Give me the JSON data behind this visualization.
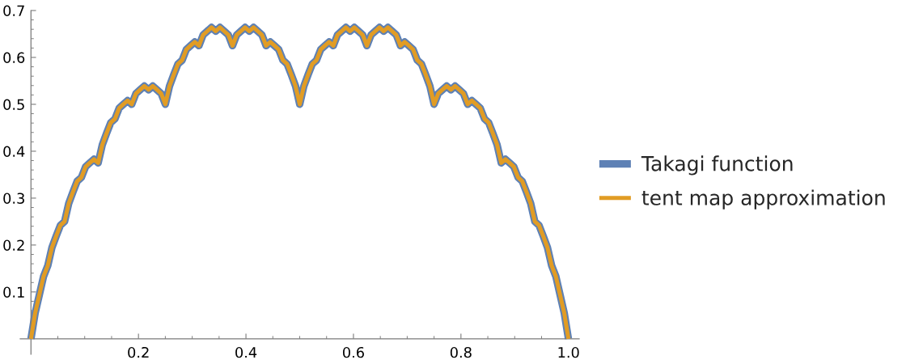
{
  "chart_data": {
    "type": "line",
    "x": [
      0,
      0.0078,
      0.0156,
      0.0234,
      0.0313,
      0.0391,
      0.0469,
      0.0547,
      0.0625,
      0.0703,
      0.0781,
      0.0859,
      0.0938,
      0.1016,
      0.1094,
      0.1172,
      0.125,
      0.1328,
      0.1406,
      0.1484,
      0.1563,
      0.1641,
      0.1719,
      0.1797,
      0.1875,
      0.1953,
      0.2031,
      0.2109,
      0.2188,
      0.2266,
      0.2344,
      0.2422,
      0.25,
      0.2578,
      0.2656,
      0.2734,
      0.2813,
      0.2891,
      0.2969,
      0.3047,
      0.3125,
      0.3203,
      0.3281,
      0.3359,
      0.3438,
      0.3516,
      0.3594,
      0.3672,
      0.375,
      0.3828,
      0.3906,
      0.3984,
      0.4063,
      0.4141,
      0.4219,
      0.4297,
      0.4375,
      0.4453,
      0.4531,
      0.4609,
      0.4688,
      0.4766,
      0.4844,
      0.4922,
      0.5,
      0.5078,
      0.5156,
      0.5234,
      0.5313,
      0.5391,
      0.5469,
      0.5547,
      0.5625,
      0.5703,
      0.5781,
      0.5859,
      0.5938,
      0.6016,
      0.6094,
      0.6172,
      0.625,
      0.6328,
      0.6406,
      0.6484,
      0.6563,
      0.6641,
      0.6719,
      0.6797,
      0.6875,
      0.6953,
      0.7031,
      0.7109,
      0.7188,
      0.7266,
      0.7344,
      0.7422,
      0.75,
      0.7578,
      0.7656,
      0.7734,
      0.7813,
      0.7891,
      0.7969,
      0.8047,
      0.8125,
      0.8203,
      0.8281,
      0.8359,
      0.8438,
      0.8516,
      0.8594,
      0.8672,
      0.875,
      0.8828,
      0.8906,
      0.8984,
      0.9063,
      0.9141,
      0.9219,
      0.9297,
      0.9375,
      0.9453,
      0.9531,
      0.9609,
      0.9688,
      0.9766,
      0.9844,
      0.9922,
      1.0
    ],
    "series": [
      {
        "name": "Takagi function",
        "color": "#5e81b5",
        "values": [
          0,
          0.055,
          0.094,
          0.133,
          0.156,
          0.195,
          0.219,
          0.242,
          0.25,
          0.289,
          0.313,
          0.336,
          0.344,
          0.367,
          0.375,
          0.383,
          0.375,
          0.414,
          0.438,
          0.461,
          0.469,
          0.492,
          0.5,
          0.508,
          0.5,
          0.523,
          0.531,
          0.539,
          0.531,
          0.539,
          0.531,
          0.523,
          0.5,
          0.539,
          0.563,
          0.586,
          0.594,
          0.617,
          0.625,
          0.633,
          0.625,
          0.648,
          0.656,
          0.664,
          0.656,
          0.664,
          0.656,
          0.648,
          0.625,
          0.648,
          0.656,
          0.664,
          0.656,
          0.664,
          0.656,
          0.648,
          0.625,
          0.633,
          0.625,
          0.617,
          0.594,
          0.586,
          0.563,
          0.539,
          0.5,
          0.539,
          0.563,
          0.586,
          0.594,
          0.617,
          0.625,
          0.633,
          0.625,
          0.648,
          0.656,
          0.664,
          0.656,
          0.664,
          0.656,
          0.648,
          0.625,
          0.648,
          0.656,
          0.664,
          0.656,
          0.664,
          0.656,
          0.648,
          0.625,
          0.633,
          0.625,
          0.617,
          0.594,
          0.586,
          0.563,
          0.539,
          0.5,
          0.523,
          0.531,
          0.539,
          0.531,
          0.539,
          0.531,
          0.523,
          0.5,
          0.508,
          0.5,
          0.492,
          0.469,
          0.461,
          0.438,
          0.414,
          0.375,
          0.383,
          0.375,
          0.367,
          0.344,
          0.336,
          0.313,
          0.289,
          0.25,
          0.242,
          0.219,
          0.195,
          0.156,
          0.133,
          0.094,
          0.055,
          0
        ]
      },
      {
        "name": "tent map approximation",
        "color": "#e19c24",
        "values": [
          0,
          0.055,
          0.094,
          0.133,
          0.156,
          0.195,
          0.219,
          0.242,
          0.25,
          0.289,
          0.313,
          0.336,
          0.344,
          0.367,
          0.375,
          0.383,
          0.375,
          0.414,
          0.438,
          0.461,
          0.469,
          0.492,
          0.5,
          0.508,
          0.5,
          0.523,
          0.531,
          0.539,
          0.531,
          0.539,
          0.531,
          0.523,
          0.5,
          0.539,
          0.563,
          0.586,
          0.594,
          0.617,
          0.625,
          0.633,
          0.625,
          0.648,
          0.656,
          0.664,
          0.656,
          0.664,
          0.656,
          0.648,
          0.625,
          0.648,
          0.656,
          0.664,
          0.656,
          0.664,
          0.656,
          0.648,
          0.625,
          0.633,
          0.625,
          0.617,
          0.594,
          0.586,
          0.563,
          0.539,
          0.5,
          0.539,
          0.563,
          0.586,
          0.594,
          0.617,
          0.625,
          0.633,
          0.625,
          0.648,
          0.656,
          0.664,
          0.656,
          0.664,
          0.656,
          0.648,
          0.625,
          0.648,
          0.656,
          0.664,
          0.656,
          0.664,
          0.656,
          0.648,
          0.625,
          0.633,
          0.625,
          0.617,
          0.594,
          0.586,
          0.563,
          0.539,
          0.5,
          0.523,
          0.531,
          0.539,
          0.531,
          0.539,
          0.531,
          0.523,
          0.5,
          0.508,
          0.5,
          0.492,
          0.469,
          0.461,
          0.438,
          0.414,
          0.375,
          0.383,
          0.375,
          0.367,
          0.344,
          0.336,
          0.313,
          0.289,
          0.25,
          0.242,
          0.219,
          0.195,
          0.156,
          0.133,
          0.094,
          0.055,
          0
        ]
      }
    ],
    "xlim": [
      -0.02,
      1.02
    ],
    "ylim": [
      -0.033,
      0.7
    ],
    "xticks": [
      {
        "value": 0.05,
        "label": null
      },
      {
        "value": 0.1,
        "label": null
      },
      {
        "value": 0.15,
        "label": null
      },
      0.2,
      {
        "value": 0.25,
        "label": null
      },
      {
        "value": 0.3,
        "label": null
      },
      {
        "value": 0.35,
        "label": null
      },
      0.4,
      {
        "value": 0.45,
        "label": null
      },
      {
        "value": 0.5,
        "label": null
      },
      {
        "value": 0.55,
        "label": null
      },
      0.6,
      {
        "value": 0.65,
        "label": null
      },
      {
        "value": 0.7,
        "label": null
      },
      {
        "value": 0.75,
        "label": null
      },
      0.8,
      {
        "value": 0.85,
        "label": null
      },
      {
        "value": 0.9,
        "label": null
      },
      {
        "value": 0.95,
        "label": null
      },
      {
        "value": 1.0,
        "label": "1.0"
      }
    ],
    "yticks": [
      {
        "value": 0.02,
        "label": null
      },
      {
        "value": 0.04,
        "label": null
      },
      {
        "value": 0.06,
        "label": null
      },
      {
        "value": 0.08,
        "label": null
      },
      0.1,
      {
        "value": 0.12,
        "label": null
      },
      {
        "value": 0.14,
        "label": null
      },
      {
        "value": 0.16,
        "label": null
      },
      {
        "value": 0.18,
        "label": null
      },
      0.2,
      {
        "value": 0.22,
        "label": null
      },
      {
        "value": 0.24,
        "label": null
      },
      {
        "value": 0.26,
        "label": null
      },
      {
        "value": 0.28,
        "label": null
      },
      0.3,
      {
        "value": 0.32,
        "label": null
      },
      {
        "value": 0.34,
        "label": null
      },
      {
        "value": 0.36,
        "label": null
      },
      {
        "value": 0.38,
        "label": null
      },
      0.4,
      {
        "value": 0.42,
        "label": null
      },
      {
        "value": 0.44,
        "label": null
      },
      {
        "value": 0.46,
        "label": null
      },
      {
        "value": 0.48,
        "label": null
      },
      0.5,
      {
        "value": 0.52,
        "label": null
      },
      {
        "value": 0.54,
        "label": null
      },
      {
        "value": 0.56,
        "label": null
      },
      {
        "value": 0.58,
        "label": null
      },
      0.6,
      {
        "value": 0.62,
        "label": null
      },
      {
        "value": 0.64,
        "label": null
      },
      {
        "value": 0.66,
        "label": null
      },
      {
        "value": 0.68,
        "label": null
      },
      0.7
    ],
    "legend": "right",
    "line_style": "solid"
  }
}
